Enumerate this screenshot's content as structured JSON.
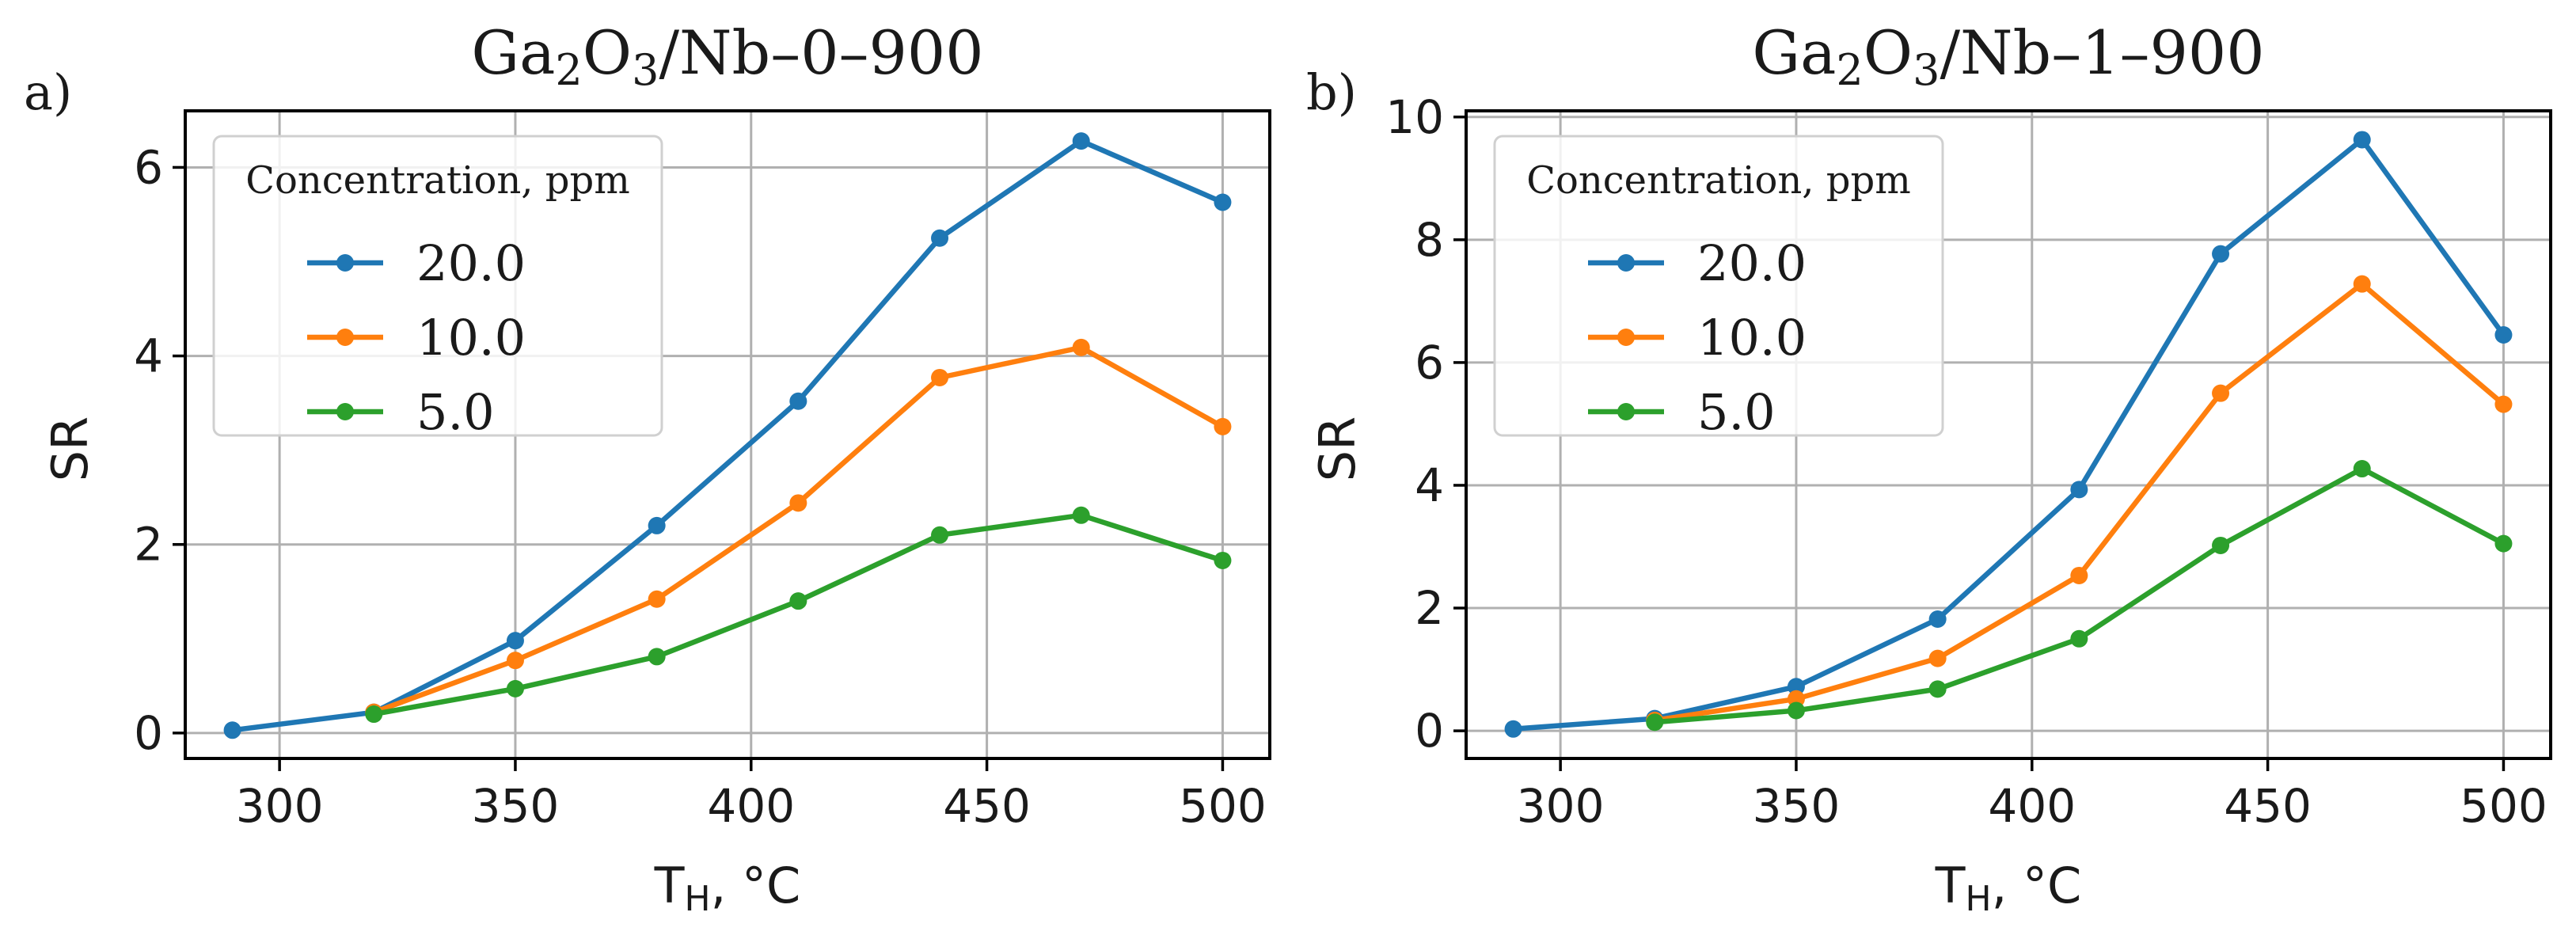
{
  "figure": {
    "panels": [
      {
        "label": "a)",
        "title_main": "Ga",
        "title_sub1": "2",
        "title_mid": "O",
        "title_sub2": "3",
        "title_tail": "/Nb–0–900"
      },
      {
        "label": "b)",
        "title_main": "Ga",
        "title_sub1": "2",
        "title_mid": "O",
        "title_sub2": "3",
        "title_tail": "/Nb–1–900"
      }
    ]
  },
  "chart_data": [
    {
      "type": "line",
      "title": "Ga2O3/Nb–0–900",
      "panel_label": "a)",
      "xlabel": "T_H, °C",
      "xlabel_main": "T",
      "xlabel_sub": "H",
      "xlabel_tail": ", °C",
      "ylabel": "SR",
      "xlim": [
        280,
        510
      ],
      "ylim": [
        -0.27,
        6.6
      ],
      "xticks": [
        300,
        350,
        400,
        450,
        500
      ],
      "yticks": [
        0,
        2,
        4,
        6
      ],
      "grid": true,
      "legend_title": "Concentration, ppm",
      "legend_location": "upper-left",
      "series": [
        {
          "name": "20.0",
          "color": "#1f77b4",
          "x": [
            290,
            320,
            350,
            380,
            410,
            440,
            470,
            500
          ],
          "y": [
            0.03,
            0.22,
            0.98,
            2.2,
            3.52,
            5.25,
            6.28,
            5.63
          ]
        },
        {
          "name": "10.0",
          "color": "#ff7f0e",
          "x": [
            320,
            350,
            380,
            410,
            440,
            470,
            500
          ],
          "y": [
            0.22,
            0.77,
            1.42,
            2.44,
            3.77,
            4.09,
            3.25
          ]
        },
        {
          "name": "5.0",
          "color": "#2ca02c",
          "x": [
            320,
            350,
            380,
            410,
            440,
            470,
            500
          ],
          "y": [
            0.2,
            0.47,
            0.81,
            1.4,
            2.1,
            2.31,
            1.83
          ]
        }
      ]
    },
    {
      "type": "line",
      "title": "Ga2O3/Nb–1–900",
      "panel_label": "b)",
      "xlabel": "T_H, °C",
      "xlabel_main": "T",
      "xlabel_sub": "H",
      "xlabel_tail": ", °C",
      "ylabel": "SR",
      "xlim": [
        280,
        510
      ],
      "ylim": [
        -0.45,
        10.1
      ],
      "xticks": [
        300,
        350,
        400,
        450,
        500
      ],
      "yticks": [
        0,
        2,
        4,
        6,
        8,
        10
      ],
      "grid": true,
      "legend_title": "Concentration, ppm",
      "legend_location": "upper-left",
      "series": [
        {
          "name": "20.0",
          "color": "#1f77b4",
          "x": [
            290,
            320,
            350,
            380,
            410,
            440,
            470,
            500
          ],
          "y": [
            0.03,
            0.2,
            0.72,
            1.82,
            3.93,
            7.77,
            9.63,
            6.45
          ]
        },
        {
          "name": "10.0",
          "color": "#ff7f0e",
          "x": [
            320,
            350,
            380,
            410,
            440,
            470,
            500
          ],
          "y": [
            0.17,
            0.52,
            1.18,
            2.53,
            5.5,
            7.28,
            5.32
          ]
        },
        {
          "name": "5.0",
          "color": "#2ca02c",
          "x": [
            320,
            350,
            380,
            410,
            440,
            470,
            500
          ],
          "y": [
            0.14,
            0.33,
            0.68,
            1.5,
            3.02,
            4.27,
            3.05
          ]
        }
      ]
    }
  ]
}
